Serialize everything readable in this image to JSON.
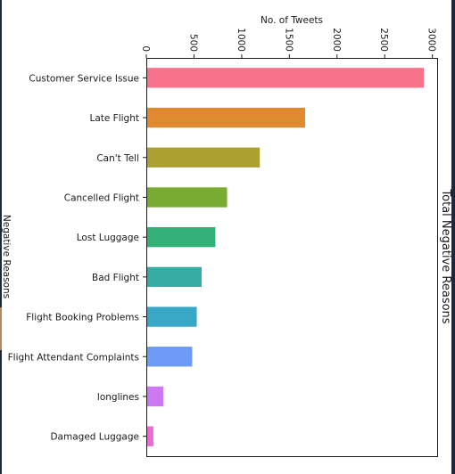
{
  "chart_data": {
    "type": "bar",
    "orientation": "horizontal",
    "title": "Total Negative Reasons",
    "xlabel": "No. of Tweets",
    "ylabel": "Negative Reasons",
    "xlim": [
      0,
      3050
    ],
    "x_ticks": [
      0,
      500,
      1000,
      1500,
      2000,
      2500,
      3000
    ],
    "x_tick_labels": [
      "0",
      "500",
      "1000",
      "1500",
      "2000",
      "2500",
      "3000"
    ],
    "categories": [
      "Customer Service Issue",
      "Late Flight",
      "Can't Tell",
      "Cancelled Flight",
      "Lost Luggage",
      "Bad Flight",
      "Flight Booking Problems",
      "Flight Attendant Complaints",
      "longlines",
      "Damaged Luggage"
    ],
    "values": [
      2910,
      1665,
      1190,
      847,
      724,
      580,
      529,
      481,
      178,
      74
    ],
    "colors": [
      "#f7728a",
      "#e0892f",
      "#aba030",
      "#79ab32",
      "#33b077",
      "#36ada4",
      "#39a8c7",
      "#6e9bf5",
      "#cd78f3",
      "#f366d9"
    ],
    "grid": false,
    "legend": "none"
  }
}
